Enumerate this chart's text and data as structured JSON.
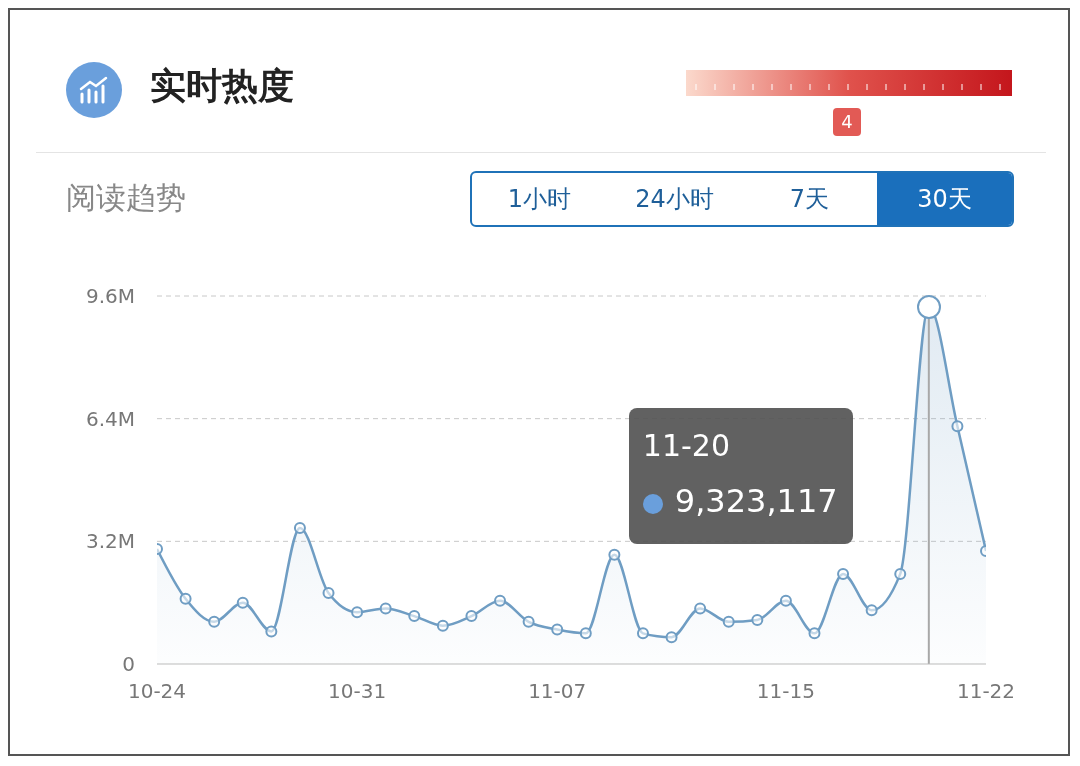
{
  "chart_data": {
    "type": "area",
    "title": "实时热度",
    "subtitle": "阅读趋势",
    "x": [
      "--10-24",
      "--10-25",
      "--10-26",
      "--10-27",
      "--10-28",
      "--10-29",
      "--10-30",
      "--10-31",
      "--11-01",
      "--11-02",
      "--11-03",
      "--11-04",
      "--11-05",
      "--11-06",
      "--11-07",
      "--11-08",
      "--11-09",
      "--11-10",
      "--11-11",
      "--11-12",
      "--11-13",
      "--11-14",
      "--11-15",
      "--11-16",
      "--11-17",
      "--11-18",
      "--11-19",
      "--11-20",
      "--11-21",
      "--11-22"
    ],
    "series": [
      {
        "color": "#6f9dc3",
        "values": [
          3000000,
          1700000,
          1100000,
          1600000,
          850000,
          3550000,
          1850000,
          1350000,
          1450000,
          1250000,
          1000000,
          1250000,
          1650000,
          1100000,
          900000,
          800000,
          2850000,
          800000,
          700000,
          1450000,
          1100000,
          1150000,
          1650000,
          800000,
          2350000,
          1400000,
          2350000,
          9323117,
          6200000,
          2950000
        ]
      }
    ],
    "xlim": [
      "--10-24",
      "--11-22"
    ],
    "xticks": [
      {
        "value": "--10-24",
        "label": "10-24"
      },
      {
        "value": "--10-31",
        "label": "10-31"
      },
      {
        "value": "--11-07",
        "label": "11-07"
      },
      {
        "value": "--11-15",
        "label": "11-15"
      },
      {
        "value": "--11-22",
        "label": "11-22"
      }
    ],
    "ylim": [
      0,
      9600000
    ],
    "yticks": [
      0,
      {
        "value": 3200000,
        "label": "3.2M"
      },
      {
        "value": 6400000,
        "label": "6.4M"
      },
      {
        "value": 9600000,
        "label": "9.6M"
      }
    ],
    "grid": "y",
    "marker": "circle",
    "line_style": "solid",
    "ref_lines": [
      {
        "axis": "x",
        "value": "--11-20",
        "color": "#a8a8a8"
      }
    ],
    "annotations": [
      "1小时",
      "24小时",
      "7天",
      "30天",
      "4",
      "11-20",
      "9,323,117"
    ]
  }
}
